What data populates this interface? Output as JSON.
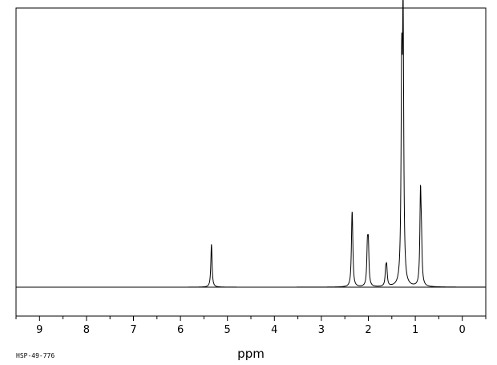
{
  "chart_data": {
    "type": "line",
    "title": "",
    "xlabel": "ppm",
    "ylabel": "",
    "xlim": [
      9.5,
      -0.5
    ],
    "ylim": [
      -0.1,
      1.0
    ],
    "x_reversed": true,
    "grid": false,
    "legend": "none",
    "xticks": [
      9,
      8,
      7,
      6,
      5,
      4,
      3,
      2,
      1,
      0
    ],
    "xtick_labels": [
      "9",
      "8",
      "7",
      "6",
      "5",
      "4",
      "3",
      "2",
      "1",
      "0"
    ],
    "minor_tick_step": 0.5,
    "peaks": [
      {
        "ppm": 5.34,
        "height": 0.16
      },
      {
        "ppm": 2.35,
        "height": 0.155
      },
      {
        "ppm": 2.34,
        "height": 0.155
      },
      {
        "ppm": 2.02,
        "height": 0.135
      },
      {
        "ppm": 2.0,
        "height": 0.14
      },
      {
        "ppm": 1.63,
        "height": 0.055
      },
      {
        "ppm": 1.61,
        "height": 0.065
      },
      {
        "ppm": 1.29,
        "height": 0.74
      },
      {
        "ppm": 1.26,
        "height": 0.95
      },
      {
        "ppm": 0.89,
        "height": 0.33
      },
      {
        "ppm": 0.87,
        "height": 0.13
      }
    ]
  },
  "footer": {
    "id": "HSP-49-776"
  },
  "colors": {
    "line": "#000000",
    "background": "#ffffff"
  }
}
